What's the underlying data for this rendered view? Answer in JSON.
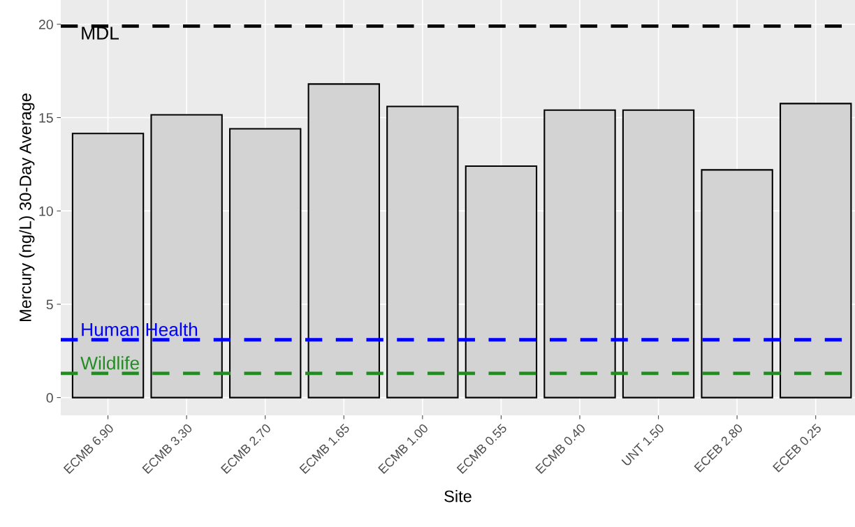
{
  "chart_data": {
    "type": "bar",
    "xlabel": "Site",
    "ylabel": "Mercury (ng/L) 30-Day Average",
    "categories": [
      "ECMB 6.90",
      "ECMB 3.30",
      "ECMB 2.70",
      "ECMB 1.65",
      "ECMB 1.00",
      "ECMB 0.55",
      "ECMB 0.40",
      "UNT 1.50",
      "ECEB 2.80",
      "ECEB 0.25"
    ],
    "values": [
      14.15,
      15.15,
      14.4,
      16.8,
      15.6,
      12.4,
      15.4,
      15.4,
      12.2,
      15.75
    ],
    "color": "#d3d3d3",
    "ylim": [
      -0.95,
      21.3
    ],
    "yticks": [
      0,
      5,
      10,
      15,
      20
    ],
    "grid": true,
    "ref_lines": [
      {
        "axis": "y",
        "value": 19.9,
        "label": "MDL",
        "color": "#000000",
        "line_style": "dashed"
      },
      {
        "axis": "y",
        "value": 3.1,
        "label": "Human Health",
        "color": "#0000ff",
        "line_style": "dashed"
      },
      {
        "axis": "y",
        "value": 1.3,
        "label": "Wildlife",
        "color": "#228b22",
        "line_style": "dashed"
      }
    ]
  }
}
